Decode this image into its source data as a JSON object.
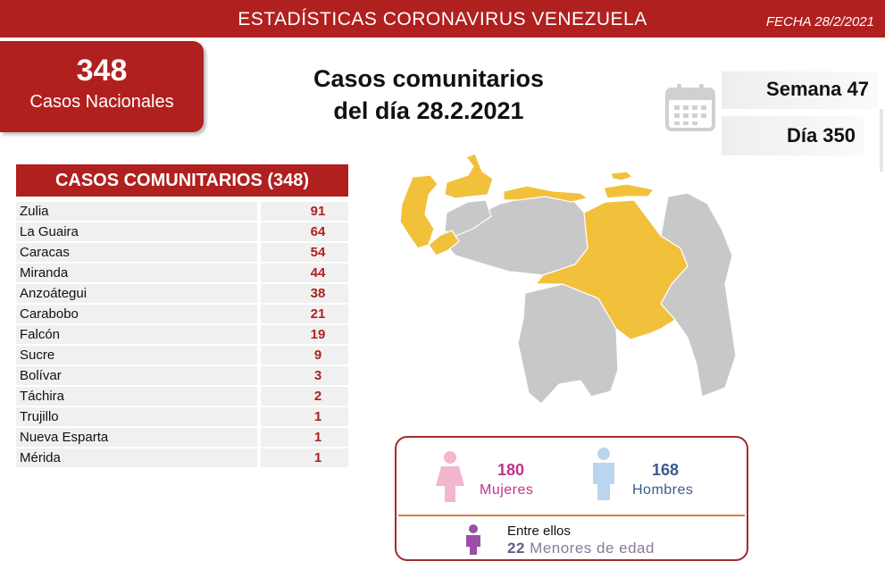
{
  "header": {
    "title": "ESTADÍSTICAS CORONAVIRUS VENEZUELA",
    "date": "FECHA 28/2/2021"
  },
  "national": {
    "count": "348",
    "label": "Casos Nacionales"
  },
  "center_title": {
    "line1": "Casos comunitarios",
    "line2": "del día 28.2.2021"
  },
  "semana": "Semana 47",
  "dia": "Día 350",
  "icons": {
    "calendar": "calendar-icon",
    "female": "female-figure-icon",
    "male": "male-figure-icon",
    "child": "child-figure-icon"
  },
  "colors": {
    "brand_red": "#b0201f",
    "state_with_cases": "#f2c13b",
    "state_no_cases": "#c8c8c8",
    "female": "#c2338a",
    "male": "#3d5a8c"
  },
  "table": {
    "title": "CASOS COMUNITARIOS (348)",
    "rows": [
      {
        "state": "Zulia",
        "cases": "91"
      },
      {
        "state": "La Guaira",
        "cases": "64"
      },
      {
        "state": "Caracas",
        "cases": "54"
      },
      {
        "state": "Miranda",
        "cases": "44"
      },
      {
        "state": "Anzoátegui",
        "cases": "38"
      },
      {
        "state": "Carabobo",
        "cases": "21"
      },
      {
        "state": "Falcón",
        "cases": "19"
      },
      {
        "state": "Sucre",
        "cases": "9"
      },
      {
        "state": "Bolívar",
        "cases": "3"
      },
      {
        "state": "Táchira",
        "cases": "2"
      },
      {
        "state": "Trujillo",
        "cases": "1"
      },
      {
        "state": "Nueva Esparta",
        "cases": "1"
      },
      {
        "state": "Mérida",
        "cases": "1"
      }
    ]
  },
  "gender": {
    "female_count": "180",
    "female_label": "Mujeres",
    "male_count": "168",
    "male_label": "Hombres",
    "minors_intro": "Entre ellos",
    "minors_count": "22",
    "minors_label": "Menores de edad"
  }
}
